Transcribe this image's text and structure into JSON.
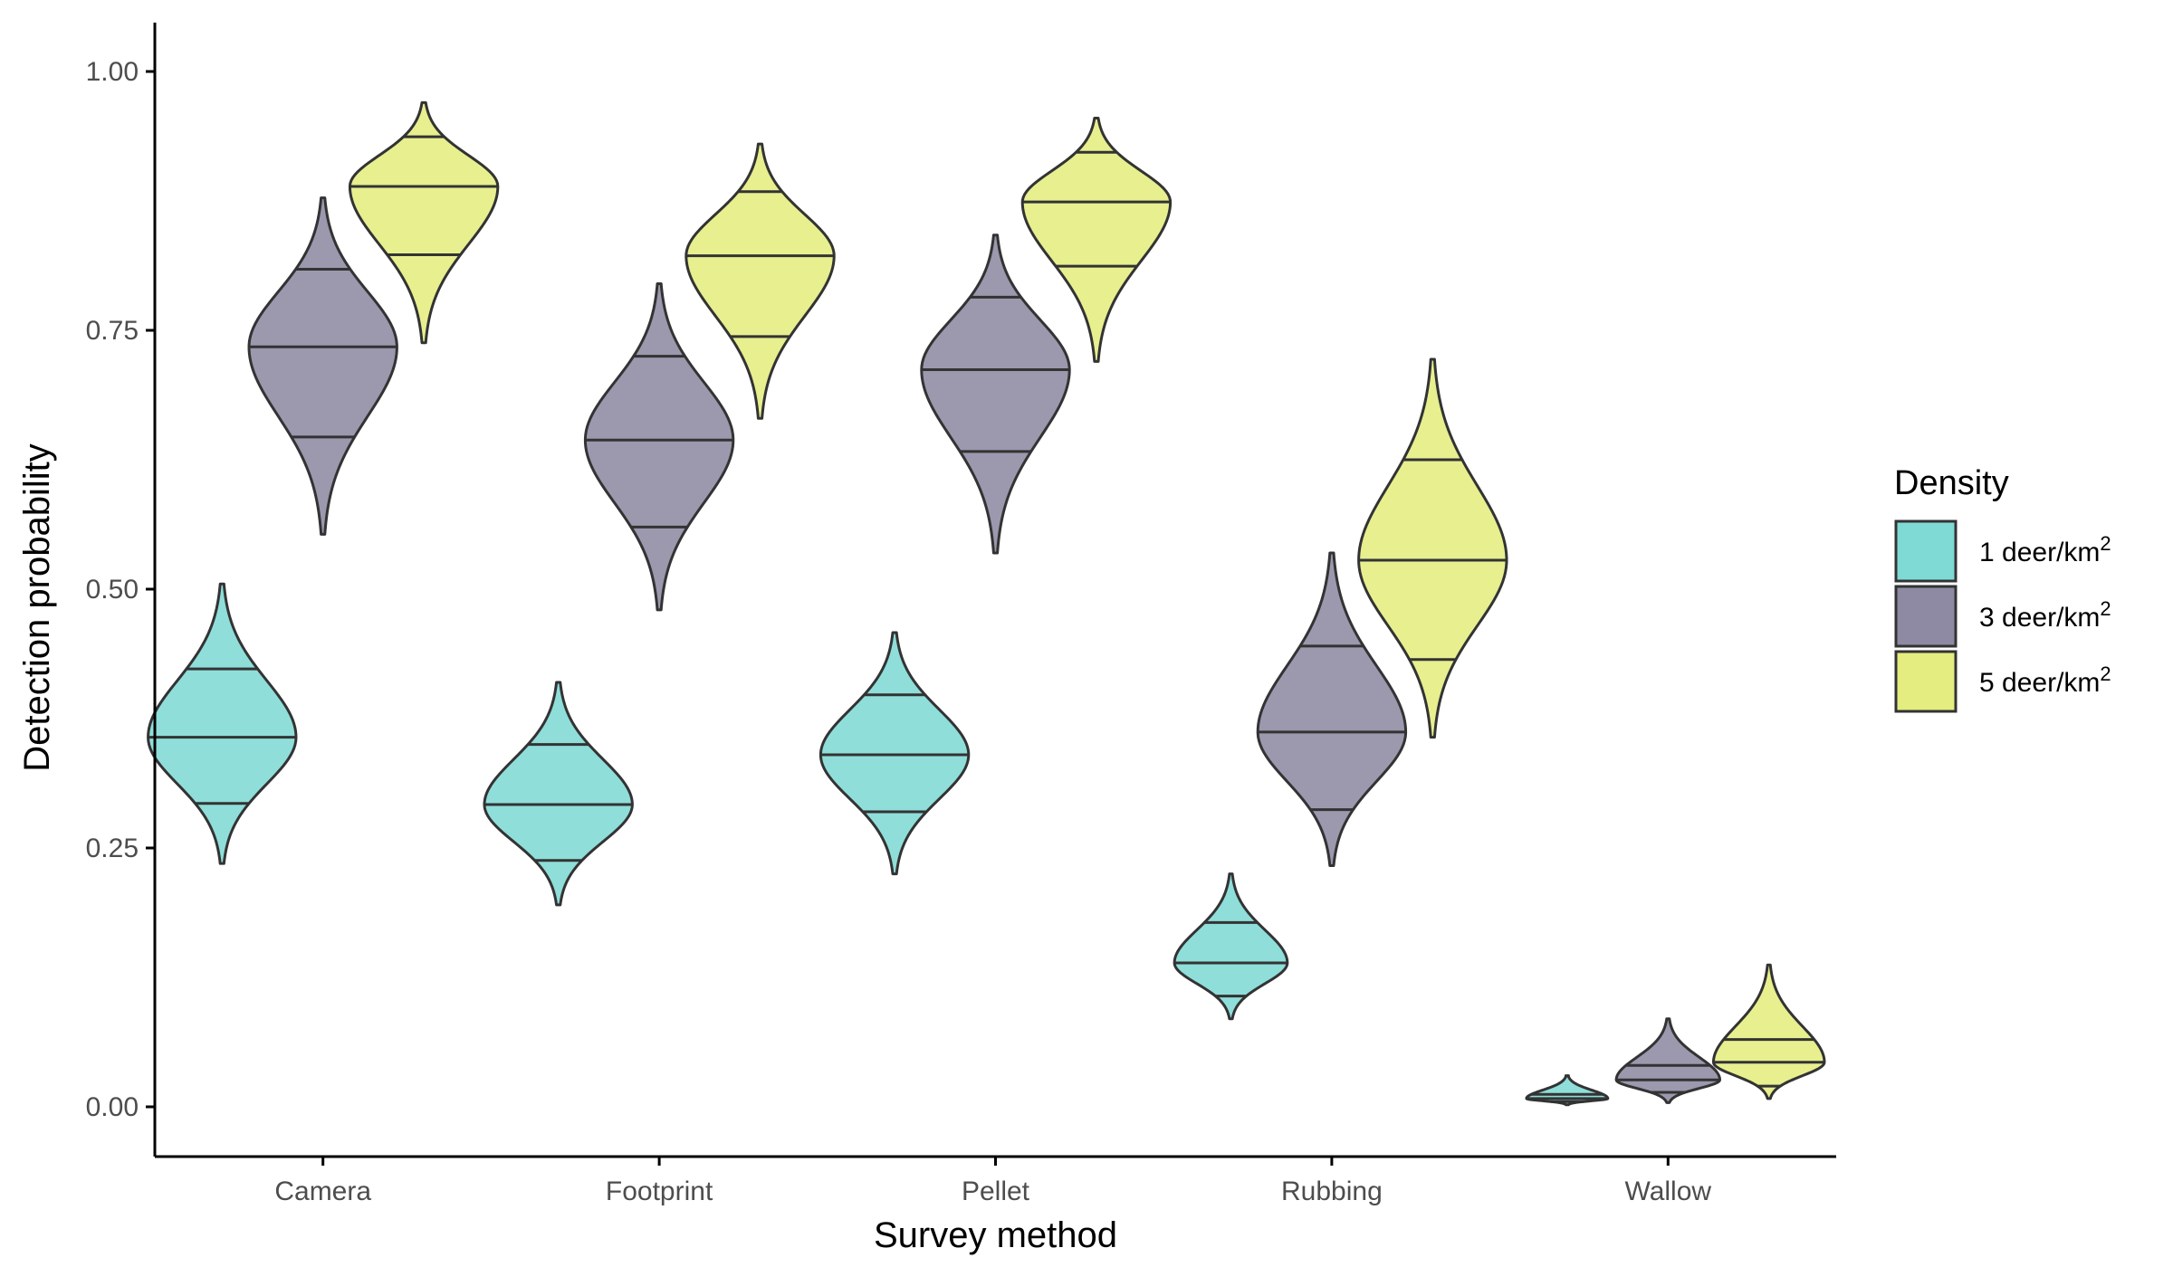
{
  "chart_data": {
    "type": "violin",
    "xlabel": "Survey method",
    "ylabel": "Detection probability",
    "ylim": [
      -0.05,
      1.05
    ],
    "yticks": [
      "0.00",
      "0.25",
      "0.50",
      "0.75",
      "1.00"
    ],
    "ytick_values": [
      0,
      0.25,
      0.5,
      0.75,
      1.0
    ],
    "grid": false,
    "categories": [
      "Camera",
      "Footprint",
      "Pellet",
      "Rubbing",
      "Wallow"
    ],
    "legend": {
      "title": "Density",
      "placement": "right",
      "items": [
        {
          "label": "1 deer/km",
          "superscript": "2",
          "color": "#7fdad5"
        },
        {
          "label": "3 deer/km",
          "superscript": "2",
          "color": "#8e8aa3"
        },
        {
          "label": "5 deer/km",
          "superscript": "2",
          "color": "#e4ed7f"
        }
      ]
    },
    "series": [
      {
        "color": "#7fdad5",
        "values": [
          {
            "min": 0.235,
            "q1": 0.293,
            "median": 0.357,
            "q3": 0.423,
            "max": 0.505
          },
          {
            "min": 0.195,
            "q1": 0.238,
            "median": 0.292,
            "q3": 0.35,
            "max": 0.41
          },
          {
            "min": 0.225,
            "q1": 0.285,
            "median": 0.34,
            "q3": 0.398,
            "max": 0.458
          },
          {
            "min": 0.085,
            "q1": 0.107,
            "median": 0.139,
            "q3": 0.178,
            "max": 0.225
          },
          {
            "min": 0.002,
            "q1": 0.005,
            "median": 0.008,
            "q3": 0.012,
            "max": 0.03
          }
        ]
      },
      {
        "color": "#8e8aa3",
        "values": [
          {
            "min": 0.553,
            "q1": 0.647,
            "median": 0.734,
            "q3": 0.809,
            "max": 0.878
          },
          {
            "min": 0.48,
            "q1": 0.56,
            "median": 0.644,
            "q3": 0.725,
            "max": 0.795
          },
          {
            "min": 0.535,
            "q1": 0.633,
            "median": 0.712,
            "q3": 0.782,
            "max": 0.842
          },
          {
            "min": 0.233,
            "q1": 0.287,
            "median": 0.362,
            "q3": 0.445,
            "max": 0.535
          },
          {
            "min": 0.004,
            "q1": 0.014,
            "median": 0.026,
            "q3": 0.04,
            "max": 0.085
          }
        ]
      },
      {
        "color": "#e4ed7f",
        "values": [
          {
            "min": 0.738,
            "q1": 0.823,
            "median": 0.889,
            "q3": 0.937,
            "max": 0.97
          },
          {
            "min": 0.665,
            "q1": 0.744,
            "median": 0.822,
            "q3": 0.884,
            "max": 0.93
          },
          {
            "min": 0.72,
            "q1": 0.812,
            "median": 0.874,
            "q3": 0.922,
            "max": 0.955
          },
          {
            "min": 0.357,
            "q1": 0.432,
            "median": 0.528,
            "q3": 0.625,
            "max": 0.722
          },
          {
            "min": 0.008,
            "q1": 0.02,
            "median": 0.043,
            "q3": 0.065,
            "max": 0.137
          }
        ]
      }
    ]
  }
}
